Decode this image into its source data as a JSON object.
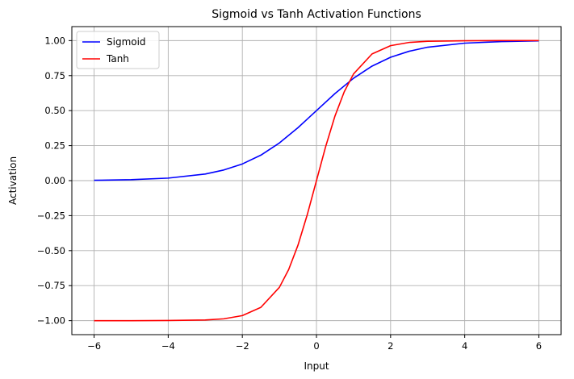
{
  "chart_data": {
    "type": "line",
    "title": "Sigmoid vs Tanh Activation Functions",
    "xlabel": "Input",
    "ylabel": "Activation",
    "xlim": [
      -6.6,
      6.6
    ],
    "ylim": [
      -1.1,
      1.1
    ],
    "xticks": [
      -6,
      -4,
      -2,
      0,
      2,
      4,
      6
    ],
    "xtick_labels": [
      "−6",
      "−4",
      "−2",
      "0",
      "2",
      "4",
      "6"
    ],
    "yticks": [
      -1.0,
      -0.75,
      -0.5,
      -0.25,
      0.0,
      0.25,
      0.5,
      0.75,
      1.0
    ],
    "ytick_labels": [
      "−1.00",
      "−0.75",
      "−0.50",
      "−0.25",
      "0.00",
      "0.25",
      "0.50",
      "0.75",
      "1.00"
    ],
    "grid": true,
    "legend_position": "top-left",
    "series": [
      {
        "name": "Sigmoid",
        "color": "#0000ff",
        "x": [
          -6,
          -5,
          -4,
          -3,
          -2.5,
          -2,
          -1.5,
          -1,
          -0.5,
          0,
          0.5,
          1,
          1.5,
          2,
          2.5,
          3,
          4,
          5,
          6
        ],
        "y": [
          0.0025,
          0.0067,
          0.018,
          0.047,
          0.076,
          0.119,
          0.182,
          0.269,
          0.378,
          0.5,
          0.622,
          0.731,
          0.818,
          0.881,
          0.924,
          0.953,
          0.982,
          0.993,
          0.998
        ]
      },
      {
        "name": "Tanh",
        "color": "#ff0000",
        "x": [
          -6,
          -5,
          -4,
          -3,
          -2.5,
          -2,
          -1.5,
          -1,
          -0.75,
          -0.5,
          -0.25,
          0,
          0.25,
          0.5,
          0.75,
          1,
          1.5,
          2,
          2.5,
          3,
          4,
          5,
          6
        ],
        "y": [
          -1.0,
          -1.0,
          -0.999,
          -0.995,
          -0.987,
          -0.964,
          -0.905,
          -0.762,
          -0.635,
          -0.462,
          -0.245,
          0.0,
          0.245,
          0.462,
          0.635,
          0.762,
          0.905,
          0.964,
          0.987,
          0.995,
          0.999,
          1.0,
          1.0
        ]
      }
    ]
  }
}
